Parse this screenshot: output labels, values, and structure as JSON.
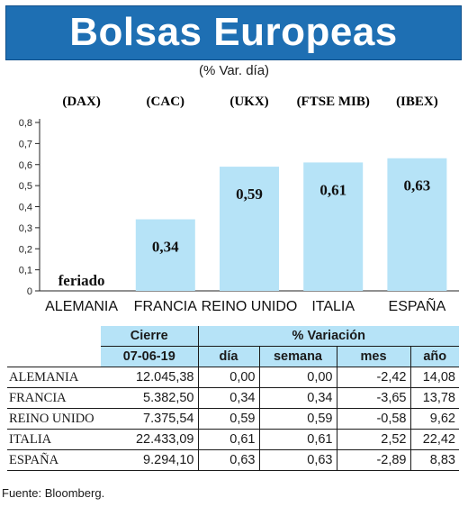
{
  "title": "Bolsas Europeas",
  "subtitle": "(% Var. día)",
  "chart_data": {
    "type": "bar",
    "indices": [
      "(DAX)",
      "(CAC)",
      "(UKX)",
      "(FTSE MIB)",
      "(IBEX)"
    ],
    "categories": [
      "ALEMANIA",
      "FRANCIA",
      "REINO UNIDO",
      "ITALIA",
      "ESPAÑA"
    ],
    "values": [
      0,
      0.34,
      0.59,
      0.61,
      0.63
    ],
    "value_labels": [
      "feriado",
      "0,34",
      "0,59",
      "0,61",
      "0,63"
    ],
    "yticks": [
      "0",
      "0,1",
      "0,2",
      "0,3",
      "0,4",
      "0,5",
      "0,6",
      "0,7",
      "0,8"
    ],
    "ylim": [
      0,
      0.8
    ],
    "bar_color": "#b6e3f7"
  },
  "table": {
    "header_cierre": "Cierre",
    "header_variacion": "% Variación",
    "header_date": "07-06-19",
    "header_dia": "día",
    "header_semana": "semana",
    "header_mes": "mes",
    "header_anio": "año",
    "rows": [
      {
        "name": "ALEMANIA",
        "cierre": "12.045,38",
        "dia": "0,00",
        "semana": "0,00",
        "mes": "-2,42",
        "anio": "14,08"
      },
      {
        "name": "FRANCIA",
        "cierre": "5.382,50",
        "dia": "0,34",
        "semana": "0,34",
        "mes": "-3,65",
        "anio": "13,78"
      },
      {
        "name": "REINO UNIDO",
        "cierre": "7.375,54",
        "dia": "0,59",
        "semana": "0,59",
        "mes": "-0,58",
        "anio": "9,62"
      },
      {
        "name": "ITALIA",
        "cierre": "22.433,09",
        "dia": "0,61",
        "semana": "0,61",
        "mes": "2,52",
        "anio": "22,42"
      },
      {
        "name": "ESPAÑA",
        "cierre": "9.294,10",
        "dia": "0,63",
        "semana": "0,63",
        "mes": "-2,89",
        "anio": "8,83"
      }
    ]
  },
  "source": "Fuente: Bloomberg."
}
